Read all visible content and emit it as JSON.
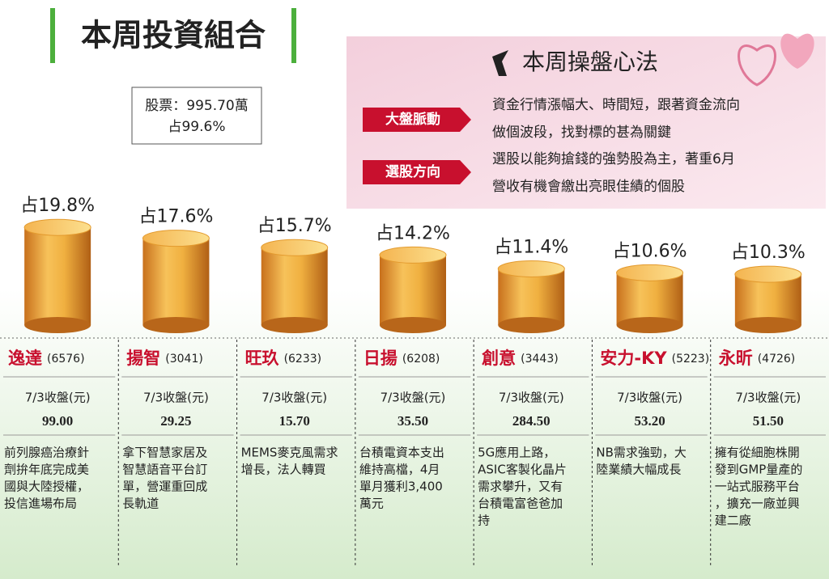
{
  "title": "本周投資組合",
  "summary": [
    "股票：995.70萬",
    "占99.6%"
  ],
  "strategy": {
    "title": "本周操盤心法",
    "items": [
      {
        "label": "大盤脈動",
        "lines": [
          "資金行情漲幅大、時間短，跟著資金流向",
          "做個波段，找對標的甚為關鍵"
        ]
      },
      {
        "label": "選股方向",
        "lines": [
          "選股以能夠搶錢的強勢股為主，著重6月",
          "營收有機會繳出亮眼佳績的個股"
        ]
      }
    ]
  },
  "chart_data": {
    "type": "bar",
    "categories": [
      "逸達",
      "揚智",
      "旺玖",
      "日揚",
      "創意",
      "安力-KY",
      "永昕"
    ],
    "codes": [
      "(6576)",
      "(3041)",
      "(6233)",
      "(6208)",
      "(3443)",
      "(5223)",
      "(4726)"
    ],
    "values": [
      19.8,
      17.6,
      15.7,
      14.2,
      11.4,
      10.6,
      10.3
    ],
    "value_labels": [
      "占19.8%",
      "占17.6%",
      "占15.7%",
      "占14.2%",
      "占11.4%",
      "占10.6%",
      "占10.3%"
    ],
    "color": "#e39a2e"
  },
  "price_header": "7/3收盤(元)",
  "prices": [
    "99.00",
    "29.25",
    "15.70",
    "35.50",
    "284.50",
    "53.20",
    "51.50"
  ],
  "notes": [
    [
      "前列腺癌治療針",
      "劑拚年底完成美",
      "國與大陸授權，",
      "投信進場布局"
    ],
    [
      "拿下智慧家居及",
      "智慧語音平台訂",
      "單，營運重回成",
      "長軌道"
    ],
    [
      "MEMS麥克風需求",
      "增長，法人轉買"
    ],
    [
      "台積電資本支出",
      "維持高檔，4月",
      "單月獲利3,400",
      "萬元"
    ],
    [
      "5G應用上路，",
      "ASIC客製化晶片",
      "需求攀升，又有",
      "台積電富爸爸加",
      "持"
    ],
    [
      "NB需求強勁，大",
      "陸業績大幅成長"
    ],
    [
      "擁有從細胞株開",
      "發到GMP量產的",
      "一站式服務平台",
      "，擴充一廠並興",
      "建二廠"
    ]
  ]
}
